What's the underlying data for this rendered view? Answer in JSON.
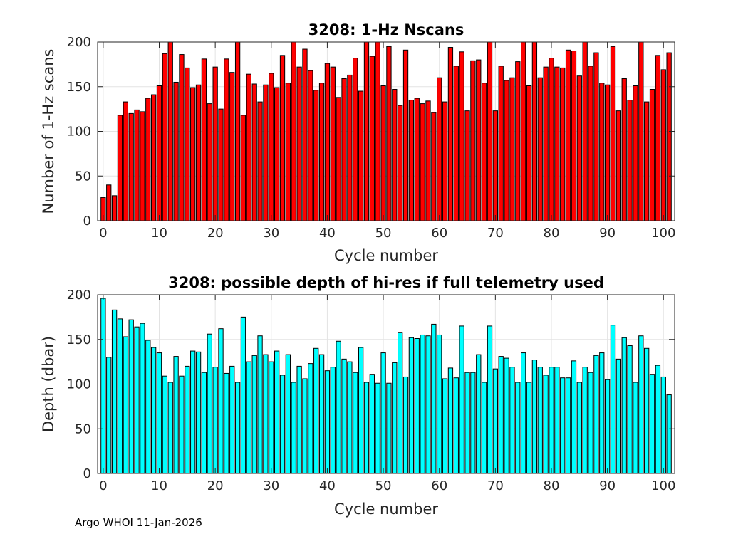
{
  "chart_data": [
    {
      "type": "bar",
      "title": "3208: 1-Hz Nscans",
      "xlabel": "Cycle number",
      "ylabel": "Number of 1-Hz scans",
      "xlim": [
        -1,
        102
      ],
      "ylim": [
        0,
        200
      ],
      "xticks": [
        0,
        10,
        20,
        30,
        40,
        50,
        60,
        70,
        80,
        90,
        100
      ],
      "yticks": [
        0,
        50,
        100,
        150,
        200
      ],
      "grid": true,
      "bar_color": "#ff0000",
      "x": [
        0,
        1,
        2,
        3,
        4,
        5,
        6,
        7,
        8,
        9,
        10,
        11,
        12,
        13,
        14,
        15,
        16,
        17,
        18,
        19,
        20,
        21,
        22,
        23,
        24,
        25,
        26,
        27,
        28,
        29,
        30,
        31,
        32,
        33,
        34,
        35,
        36,
        37,
        38,
        39,
        40,
        41,
        42,
        43,
        44,
        45,
        46,
        47,
        48,
        49,
        50,
        51,
        52,
        53,
        54,
        55,
        56,
        57,
        58,
        59,
        60,
        61,
        62,
        63,
        64,
        65,
        66,
        67,
        68,
        69,
        70,
        71,
        72,
        73,
        74,
        75,
        76,
        77,
        78,
        79,
        80,
        81,
        82,
        83,
        84,
        85,
        86,
        87,
        88,
        89,
        90,
        91,
        92,
        93,
        94,
        95,
        96,
        97,
        98,
        99,
        100,
        101
      ],
      "values": [
        26,
        40,
        28,
        118,
        133,
        120,
        124,
        122,
        137,
        141,
        151,
        187,
        200,
        155,
        186,
        171,
        149,
        152,
        181,
        131,
        172,
        125,
        181,
        166,
        200,
        118,
        164,
        153,
        133,
        152,
        165,
        149,
        185,
        154,
        200,
        172,
        192,
        168,
        146,
        154,
        176,
        172,
        138,
        159,
        163,
        182,
        145,
        200,
        184,
        200,
        151,
        195,
        147,
        129,
        191,
        135,
        137,
        131,
        134,
        121,
        160,
        133,
        194,
        173,
        189,
        123,
        179,
        180,
        154,
        200,
        123,
        173,
        157,
        160,
        178,
        200,
        151,
        200,
        160,
        172,
        182,
        172,
        171,
        191,
        190,
        162,
        200,
        173,
        188,
        154,
        152,
        195,
        123,
        159,
        135,
        151,
        200,
        133,
        147,
        185,
        169,
        188
      ]
    },
    {
      "type": "bar",
      "title": "3208: possible depth of hi-res if full telemetry used",
      "xlabel": "Cycle number",
      "ylabel": "Depth (dbar)",
      "xlim": [
        -1,
        102
      ],
      "ylim": [
        0,
        200
      ],
      "xticks": [
        0,
        10,
        20,
        30,
        40,
        50,
        60,
        70,
        80,
        90,
        100
      ],
      "yticks": [
        0,
        50,
        100,
        150,
        200
      ],
      "grid": true,
      "bar_color": "#00ffff",
      "x": [
        0,
        1,
        2,
        3,
        4,
        5,
        6,
        7,
        8,
        9,
        10,
        11,
        12,
        13,
        14,
        15,
        16,
        17,
        18,
        19,
        20,
        21,
        22,
        23,
        24,
        25,
        26,
        27,
        28,
        29,
        30,
        31,
        32,
        33,
        34,
        35,
        36,
        37,
        38,
        39,
        40,
        41,
        42,
        43,
        44,
        45,
        46,
        47,
        48,
        49,
        50,
        51,
        52,
        53,
        54,
        55,
        56,
        57,
        58,
        59,
        60,
        61,
        62,
        63,
        64,
        65,
        66,
        67,
        68,
        69,
        70,
        71,
        72,
        73,
        74,
        75,
        76,
        77,
        78,
        79,
        80,
        81,
        82,
        83,
        84,
        85,
        86,
        87,
        88,
        89,
        90,
        91,
        92,
        93,
        94,
        95,
        96,
        97,
        98,
        99,
        100,
        101
      ],
      "values": [
        196,
        130,
        183,
        173,
        153,
        172,
        164,
        168,
        149,
        141,
        135,
        109,
        102,
        131,
        109,
        120,
        137,
        136,
        113,
        156,
        119,
        162,
        112,
        120,
        102,
        175,
        125,
        132,
        154,
        133,
        125,
        137,
        110,
        133,
        102,
        120,
        106,
        123,
        140,
        133,
        115,
        119,
        148,
        128,
        125,
        113,
        141,
        102,
        111,
        101,
        135,
        101,
        124,
        158,
        108,
        152,
        151,
        155,
        154,
        167,
        155,
        106,
        118,
        107,
        165,
        113,
        113,
        133,
        102,
        165,
        117,
        131,
        129,
        119,
        102,
        135,
        102,
        127,
        119,
        110,
        119,
        119,
        107,
        107,
        126,
        102,
        119,
        113,
        132,
        135,
        105,
        166,
        128,
        152,
        143,
        102,
        154,
        140,
        111,
        121,
        108,
        88
      ]
    }
  ],
  "footer": "Argo WHOI 11-Jan-2026"
}
